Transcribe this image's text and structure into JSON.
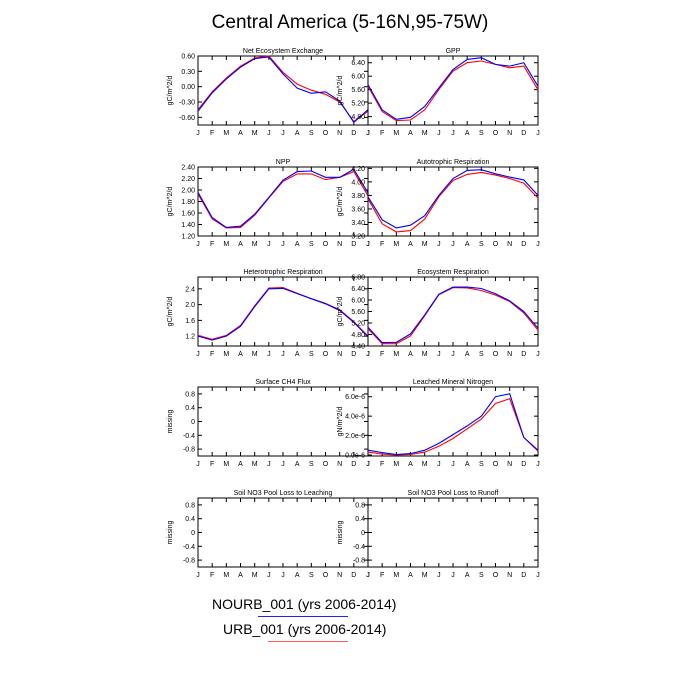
{
  "title": "Central America (5-16N,95-75W)",
  "legend": [
    {
      "label": "NOURB_001 (yrs 2006-2014)",
      "color": "#0000ff"
    },
    {
      "label": "URB_001 (yrs 2006-2014)",
      "color": "#ff0000"
    }
  ],
  "chart_data": [
    {
      "type": "line",
      "title": "Net Ecosystem Exchange",
      "ylabel": "gC/m^2/d",
      "categories": [
        "J",
        "F",
        "M",
        "A",
        "M",
        "J",
        "J",
        "A",
        "S",
        "O",
        "N",
        "D",
        "J"
      ],
      "yticks": [
        "0.60",
        "0.30",
        "0.00",
        "-0.30",
        "-0.60"
      ],
      "ytick_values": [
        0.6,
        0.3,
        0.0,
        -0.3,
        -0.6
      ],
      "ylim": [
        -0.75,
        0.6
      ],
      "series": [
        {
          "color": "#0000ff",
          "values": [
            -0.48,
            -0.12,
            0.15,
            0.38,
            0.55,
            0.58,
            0.25,
            -0.03,
            -0.13,
            -0.1,
            -0.28,
            -0.7,
            -0.45
          ]
        },
        {
          "color": "#ff0000",
          "values": [
            -0.45,
            -0.1,
            0.17,
            0.4,
            0.56,
            0.6,
            0.28,
            0.05,
            -0.07,
            -0.15,
            -0.3,
            -0.68,
            -0.48
          ]
        }
      ]
    },
    {
      "type": "line",
      "title": "GPP",
      "ylabel": "gC/m^2/d",
      "categories": [
        "J",
        "F",
        "M",
        "A",
        "M",
        "J",
        "J",
        "A",
        "S",
        "O",
        "N",
        "D",
        "J"
      ],
      "yticks": [
        "6.40",
        "6.00",
        "5.60",
        "5.20",
        "4.80"
      ],
      "ytick_values": [
        6.4,
        6.0,
        5.6,
        5.2,
        4.8
      ],
      "ylim": [
        4.55,
        6.6
      ],
      "series": [
        {
          "color": "#0000ff",
          "values": [
            5.75,
            5.0,
            4.72,
            4.78,
            5.1,
            5.65,
            6.2,
            6.5,
            6.55,
            6.35,
            6.3,
            6.4,
            5.7
          ]
        },
        {
          "color": "#ff0000",
          "values": [
            5.7,
            4.95,
            4.68,
            4.7,
            5.0,
            5.6,
            6.15,
            6.4,
            6.45,
            6.35,
            6.25,
            6.3,
            5.6
          ]
        }
      ]
    },
    {
      "type": "line",
      "title": "NPP",
      "ylabel": "gC/m^2/d",
      "categories": [
        "J",
        "F",
        "M",
        "A",
        "M",
        "J",
        "J",
        "A",
        "S",
        "O",
        "N",
        "D",
        "J"
      ],
      "yticks": [
        "2.40",
        "2.20",
        "2.00",
        "1.80",
        "1.60",
        "1.40",
        "1.20"
      ],
      "ytick_values": [
        2.4,
        2.2,
        2.0,
        1.8,
        1.6,
        1.4,
        1.2
      ],
      "ylim": [
        1.2,
        2.4
      ],
      "series": [
        {
          "color": "#0000ff",
          "values": [
            1.96,
            1.52,
            1.35,
            1.37,
            1.58,
            1.87,
            2.17,
            2.32,
            2.33,
            2.22,
            2.22,
            2.36,
            1.95
          ]
        },
        {
          "color": "#ff0000",
          "values": [
            1.93,
            1.5,
            1.34,
            1.35,
            1.56,
            1.86,
            2.15,
            2.28,
            2.28,
            2.18,
            2.22,
            2.32,
            1.9
          ]
        }
      ]
    },
    {
      "type": "line",
      "title": "Autotrophic Respiration",
      "ylabel": "gC/m^2/d",
      "categories": [
        "J",
        "F",
        "M",
        "A",
        "M",
        "J",
        "J",
        "A",
        "S",
        "O",
        "N",
        "D",
        "J"
      ],
      "yticks": [
        "4.20",
        "4.00",
        "3.80",
        "3.60",
        "3.40",
        "3.20"
      ],
      "ytick_values": [
        4.2,
        4.0,
        3.8,
        3.6,
        3.4,
        3.2
      ],
      "ylim": [
        3.2,
        4.22
      ],
      "series": [
        {
          "color": "#0000ff",
          "values": [
            3.78,
            3.44,
            3.32,
            3.36,
            3.5,
            3.8,
            4.05,
            4.17,
            4.18,
            4.12,
            4.07,
            4.03,
            3.8
          ]
        },
        {
          "color": "#ff0000",
          "values": [
            3.75,
            3.38,
            3.26,
            3.28,
            3.45,
            3.78,
            4.02,
            4.11,
            4.14,
            4.1,
            4.05,
            3.98,
            3.76
          ]
        }
      ]
    },
    {
      "type": "line",
      "title": "Heterotrophic Respiration",
      "ylabel": "gC/m^2/d",
      "categories": [
        "J",
        "F",
        "M",
        "A",
        "M",
        "J",
        "J",
        "A",
        "S",
        "O",
        "N",
        "D",
        "J"
      ],
      "yticks": [
        "2.4",
        "2.0",
        "1.6",
        "1.2"
      ],
      "ytick_values": [
        2.4,
        2.0,
        1.6,
        1.2
      ],
      "ylim": [
        0.95,
        2.7
      ],
      "series": [
        {
          "color": "#0000ff",
          "values": [
            1.2,
            1.1,
            1.2,
            1.45,
            1.95,
            2.4,
            2.41,
            2.28,
            2.15,
            2.02,
            1.85,
            1.55,
            1.18
          ]
        },
        {
          "color": "#ff0000",
          "values": [
            1.22,
            1.12,
            1.22,
            1.47,
            1.97,
            2.42,
            2.43,
            2.29,
            2.15,
            2.03,
            1.87,
            1.57,
            1.2
          ]
        }
      ]
    },
    {
      "type": "line",
      "title": "Ecosystem Respiration",
      "ylabel": "gC/m^2/d",
      "categories": [
        "J",
        "F",
        "M",
        "A",
        "M",
        "J",
        "J",
        "A",
        "S",
        "O",
        "N",
        "D",
        "J"
      ],
      "yticks": [
        "6.80",
        "6.40",
        "6.00",
        "5.60",
        "5.20",
        "4.80",
        "4.40"
      ],
      "ytick_values": [
        6.8,
        6.4,
        6.0,
        5.6,
        5.2,
        4.8,
        4.4
      ],
      "ylim": [
        4.4,
        6.8
      ],
      "series": [
        {
          "color": "#0000ff",
          "values": [
            5.05,
            4.52,
            4.53,
            4.82,
            5.48,
            6.2,
            6.45,
            6.45,
            6.4,
            6.22,
            5.97,
            5.6,
            5.02
          ]
        },
        {
          "color": "#ff0000",
          "values": [
            5.0,
            4.48,
            4.48,
            4.75,
            5.45,
            6.18,
            6.43,
            6.42,
            6.33,
            6.17,
            5.95,
            5.55,
            4.95
          ]
        }
      ]
    },
    {
      "type": "line",
      "title": "Surface CH4 Flux",
      "ylabel": "missing",
      "categories": [
        "J",
        "F",
        "M",
        "A",
        "M",
        "J",
        "J",
        "A",
        "S",
        "O",
        "N",
        "D",
        "J"
      ],
      "yticks": [
        "0.8",
        "0.4",
        "0",
        "-0.4",
        "-0.8"
      ],
      "ytick_values": [
        0.8,
        0.4,
        0,
        -0.4,
        -0.8
      ],
      "ylim": [
        -1.0,
        1.0
      ],
      "series": []
    },
    {
      "type": "line",
      "title": "Leached Mineral Nitrogen",
      "ylabel": "gN/m^2/d",
      "categories": [
        "J",
        "F",
        "M",
        "A",
        "M",
        "J",
        "J",
        "A",
        "S",
        "O",
        "N",
        "D",
        "J"
      ],
      "yticks": [
        "6.0e-6",
        "4.0e-6",
        "2.0e-6",
        "0.0e-6"
      ],
      "ytick_values": [
        6.0,
        4.0,
        2.0,
        0.0
      ],
      "ylim": [
        -0.1,
        7.0
      ],
      "series": [
        {
          "color": "#0000ff",
          "values": [
            0.5,
            0.25,
            0.05,
            0.15,
            0.5,
            1.2,
            2.1,
            3.0,
            4.0,
            6.0,
            6.3,
            1.8,
            0.5
          ]
        },
        {
          "color": "#ff0000",
          "values": [
            0.3,
            0.1,
            0.0,
            0.05,
            0.3,
            0.9,
            1.7,
            2.7,
            3.7,
            5.3,
            5.8,
            1.8,
            0.4
          ]
        }
      ]
    },
    {
      "type": "line",
      "title": "Soil NO3 Pool Loss to Leaching",
      "ylabel": "missing",
      "categories": [
        "J",
        "F",
        "M",
        "A",
        "M",
        "J",
        "J",
        "A",
        "S",
        "O",
        "N",
        "D",
        "J"
      ],
      "yticks": [
        "0.8",
        "0.4",
        "0",
        "-0.4",
        "-0.8"
      ],
      "ytick_values": [
        0.8,
        0.4,
        0,
        -0.4,
        -0.8
      ],
      "ylim": [
        -1.0,
        1.0
      ],
      "series": []
    },
    {
      "type": "line",
      "title": "Soil NO3 Pool Loss to Runoff",
      "ylabel": "missing",
      "categories": [
        "J",
        "F",
        "M",
        "A",
        "M",
        "J",
        "J",
        "A",
        "S",
        "O",
        "N",
        "D",
        "J"
      ],
      "yticks": [
        "0.8",
        "0.4",
        "0",
        "-0.4",
        "-0.8"
      ],
      "ytick_values": [
        0.8,
        0.4,
        0,
        -0.4,
        -0.8
      ],
      "ylim": [
        -1.0,
        1.0
      ],
      "series": []
    }
  ]
}
